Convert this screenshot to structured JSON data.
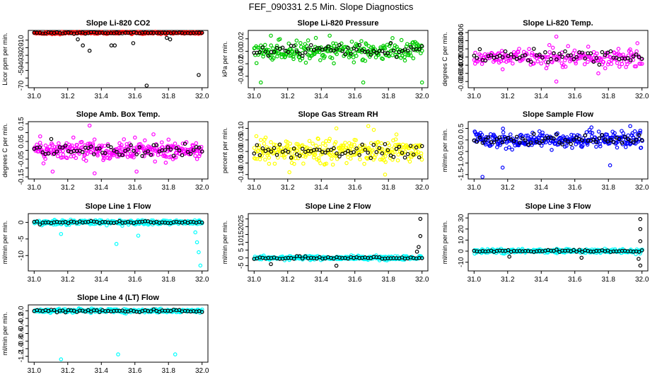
{
  "title": "FEF_090331  2.5 Min. Slope Diagnostics",
  "chart_data": [
    {
      "type": "scatter",
      "title": "Slope Li-820 CO2",
      "ylabel": "Licor ppm per min.",
      "xlim": [
        31.0,
        32.0
      ],
      "ylim": [
        -70,
        0
      ],
      "xticks": [
        31.0,
        31.2,
        31.4,
        31.6,
        31.8,
        32.0
      ],
      "xtick_labels": [
        "31.0",
        "31.2",
        "31.4",
        "31.6",
        "31.8",
        "32.0"
      ],
      "yticks": [
        -70,
        -60,
        -50,
        -40,
        -30,
        -20,
        -10
      ],
      "ytick_labels": [
        "-70",
        "",
        "-50",
        "-40",
        "-30",
        "-20",
        "-10"
      ],
      "band": {
        "center": -0.5,
        "spread": 1.2,
        "n": 200
      },
      "band_color": "#ff0000",
      "black_band": {
        "center": -0.5,
        "spread": 0.6
      },
      "outliers": [
        [
          31.26,
          -9
        ],
        [
          31.29,
          -17
        ],
        [
          31.33,
          -24
        ],
        [
          31.46,
          -17
        ],
        [
          31.48,
          -17
        ],
        [
          31.59,
          -14
        ],
        [
          31.67,
          -70
        ],
        [
          31.79,
          -7
        ],
        [
          31.81,
          -9
        ],
        [
          31.98,
          -56
        ]
      ],
      "outlier_color": "#000000"
    },
    {
      "type": "scatter",
      "title": "Slope Li-820 Pressure",
      "ylabel": "kPa per min.",
      "xlim": [
        31.0,
        32.0
      ],
      "ylim": [
        -0.055,
        0.03
      ],
      "xticks": [
        31.0,
        31.2,
        31.4,
        31.6,
        31.8,
        32.0
      ],
      "xtick_labels": [
        "31.0",
        "31.2",
        "31.4",
        "31.6",
        "31.8",
        "32.0"
      ],
      "yticks": [
        -0.04,
        -0.02,
        0.0,
        0.02
      ],
      "ytick_labels": [
        "-0.04",
        "-0.02",
        "0.00",
        "0.02"
      ],
      "band": {
        "center": 0.0,
        "spread": 0.012,
        "n": 260
      },
      "band_color": "#00cc00",
      "black_band": {
        "center": 0.0,
        "spread": 0.008
      },
      "outliers": [
        [
          31.04,
          -0.05
        ],
        [
          31.65,
          -0.05
        ],
        [
          32.0,
          -0.05
        ],
        [
          31.1,
          0.025
        ],
        [
          31.45,
          0.025
        ]
      ],
      "outlier_color": "#00cc00"
    },
    {
      "type": "scatter",
      "title": "Slope Li-820 Temp.",
      "ylabel": "degrees C per min.",
      "xlim": [
        31.0,
        32.0
      ],
      "ylim": [
        -0.007,
        0.006
      ],
      "xticks": [
        31.0,
        31.2,
        31.4,
        31.6,
        31.8,
        32.0
      ],
      "xtick_labels": [
        "31.0",
        "31.2",
        "31.4",
        "31.6",
        "31.8",
        "32.0"
      ],
      "yticks": [
        -0.006,
        -0.004,
        -0.002,
        0.0,
        0.002,
        0.004,
        0.006
      ],
      "ytick_labels": [
        "-0.006",
        "-0.004",
        "-0.002",
        "0.000",
        "0.002",
        "0.004",
        "0.006"
      ],
      "band": {
        "center": 0.0,
        "spread": 0.0018,
        "n": 220
      },
      "band_color": "#ff00ff",
      "black_band": {
        "center": 0.0,
        "spread": 0.0012
      },
      "outliers": [
        [
          31.49,
          0.005
        ],
        [
          31.49,
          -0.006
        ],
        [
          31.74,
          -0.004
        ],
        [
          31.17,
          -0.003
        ],
        [
          31.86,
          0.002
        ]
      ],
      "outlier_color": "#ff00ff"
    },
    {
      "type": "scatter",
      "title": "Slope Amb. Box Temp.",
      "ylabel": "degrees C per min.",
      "xlim": [
        31.0,
        32.0
      ],
      "ylim": [
        -0.15,
        0.15
      ],
      "xticks": [
        31.0,
        31.2,
        31.4,
        31.6,
        31.8,
        32.0
      ],
      "xtick_labels": [
        "31.0",
        "31.2",
        "31.4",
        "31.6",
        "31.8",
        "32.0"
      ],
      "yticks": [
        -0.15,
        -0.05,
        0.05,
        0.15
      ],
      "ytick_labels": [
        "-0.15",
        "-0.05",
        "0.05",
        "0.15"
      ],
      "yticks_minor": [
        -0.1,
        0.0,
        0.1
      ],
      "band": {
        "center": 0.0,
        "spread": 0.045,
        "n": 300
      },
      "band_color": "#ff00ff",
      "black_band": {
        "center": 0.0,
        "spread": 0.03
      },
      "outliers": [
        [
          31.33,
          0.14
        ],
        [
          31.36,
          -0.13
        ],
        [
          31.11,
          -0.12
        ],
        [
          31.61,
          -0.12
        ]
      ],
      "outlier_color": "#ff00ff"
    },
    {
      "type": "scatter",
      "title": "Slope Gas Stream RH",
      "ylabel": "percent per min.",
      "xlim": [
        31.0,
        32.0
      ],
      "ylim": [
        -0.11,
        0.12
      ],
      "xticks": [
        31.0,
        31.2,
        31.4,
        31.6,
        31.8,
        32.0
      ],
      "xtick_labels": [
        "31.0",
        "31.2",
        "31.4",
        "31.6",
        "31.8",
        "32.0"
      ],
      "yticks": [
        -0.1,
        -0.05,
        0.0,
        0.05,
        0.1
      ],
      "ytick_labels": [
        "-0.10",
        "-0.05",
        "0.00",
        "0.05",
        "0.10"
      ],
      "band": {
        "center": 0.0,
        "spread": 0.04,
        "n": 300
      },
      "band_color": "#ffff00",
      "black_band": {
        "center": 0.0,
        "spread": 0.025
      },
      "outliers": [
        [
          31.68,
          0.11
        ],
        [
          31.49,
          0.1
        ],
        [
          31.78,
          -0.1
        ],
        [
          31.21,
          -0.09
        ]
      ],
      "outlier_color": "#ffff00"
    },
    {
      "type": "scatter",
      "title": "Slope Sample Flow",
      "ylabel": "ml/min per min.",
      "xlim": [
        31.0,
        32.0
      ],
      "ylim": [
        -1.6,
        0.7
      ],
      "xticks": [
        31.0,
        31.2,
        31.4,
        31.6,
        31.8,
        32.0
      ],
      "xtick_labels": [
        "31.0",
        "31.2",
        "31.4",
        "31.6",
        "31.8",
        "32.0"
      ],
      "yticks": [
        -1.5,
        -1.0,
        -0.5,
        0.0,
        0.5
      ],
      "ytick_labels": [
        "-1.5",
        "-1.0",
        "-0.5",
        "0.0",
        "0.5"
      ],
      "band": {
        "center": 0.0,
        "spread": 0.28,
        "n": 300
      },
      "band_color": "#0000ff",
      "black_band": {
        "center": 0.0,
        "spread": 0.2
      },
      "outliers": [
        [
          31.05,
          -1.6
        ],
        [
          31.93,
          0.6
        ],
        [
          31.17,
          -1.2
        ],
        [
          31.81,
          -1.1
        ],
        [
          31.99,
          0.4
        ]
      ],
      "outlier_color": "#0000ff"
    },
    {
      "type": "scatter",
      "title": "Slope Line 1 Flow",
      "ylabel": "ml/min per min.",
      "xlim": [
        31.0,
        32.0
      ],
      "ylim": [
        -14,
        2
      ],
      "xticks": [
        31.0,
        31.2,
        31.4,
        31.6,
        31.8,
        32.0
      ],
      "xtick_labels": [
        "31.0",
        "31.2",
        "31.4",
        "31.6",
        "31.8",
        "32.0"
      ],
      "yticks": [
        -10,
        -5,
        0
      ],
      "ytick_labels": [
        "-10",
        "-5",
        "0"
      ],
      "band": {
        "center": 0.0,
        "spread": 0.6,
        "n": 280
      },
      "band_color": "#00ffff",
      "black_band": {
        "center": 0.0,
        "spread": 0.3
      },
      "outliers": [
        [
          31.16,
          -3.5
        ],
        [
          31.49,
          -6.5
        ],
        [
          31.62,
          -4
        ],
        [
          31.97,
          -6
        ],
        [
          31.98,
          -9
        ],
        [
          31.99,
          -13
        ],
        [
          31.96,
          -3
        ]
      ],
      "outlier_color": "#00ffff"
    },
    {
      "type": "scatter",
      "title": "Slope Line 2 Flow",
      "ylabel": "ml/min per min.",
      "xlim": [
        31.0,
        32.0
      ],
      "ylim": [
        -7,
        27
      ],
      "xticks": [
        31.0,
        31.2,
        31.4,
        31.6,
        31.8,
        32.0
      ],
      "xtick_labels": [
        "31.0",
        "31.2",
        "31.4",
        "31.6",
        "31.8",
        "32.0"
      ],
      "yticks": [
        -5,
        0,
        5,
        10,
        15,
        20,
        25
      ],
      "ytick_labels": [
        "-5",
        "0",
        "5",
        "10",
        "15",
        "20",
        "25"
      ],
      "band": {
        "center": 0.0,
        "spread": 1.0,
        "n": 280
      },
      "band_color": "#00ffff",
      "black_band": {
        "center": 0.0,
        "spread": 0.6
      },
      "outliers": [
        [
          31.99,
          25
        ],
        [
          31.99,
          14
        ],
        [
          31.98,
          7
        ],
        [
          31.97,
          4
        ],
        [
          31.1,
          -4
        ],
        [
          31.49,
          -5
        ]
      ],
      "outlier_color": "#000000"
    },
    {
      "type": "scatter",
      "title": "Slope Line 3 Flow",
      "ylabel": "ml/min per min.",
      "xlim": [
        31.0,
        32.0
      ],
      "ylim": [
        -16,
        32
      ],
      "xticks": [
        31.0,
        31.2,
        31.4,
        31.6,
        31.8,
        32.0
      ],
      "xtick_labels": [
        "31.0",
        "31.2",
        "31.4",
        "31.6",
        "31.8",
        "32.0"
      ],
      "yticks": [
        -10,
        0,
        10,
        20,
        30
      ],
      "ytick_labels": [
        "-10",
        "0",
        "10",
        "20",
        "30"
      ],
      "band": {
        "center": 0.0,
        "spread": 1.5,
        "n": 280
      },
      "band_color": "#00ffff",
      "black_band": {
        "center": 0.0,
        "spread": 0.8
      },
      "outliers": [
        [
          31.99,
          29
        ],
        [
          31.99,
          20
        ],
        [
          31.99,
          9
        ],
        [
          31.98,
          -7
        ],
        [
          31.99,
          -13
        ],
        [
          31.21,
          -5
        ],
        [
          31.64,
          -6
        ]
      ],
      "outlier_color": "#000000"
    },
    {
      "type": "scatter",
      "title": "Slope Line 4 (LT) Flow",
      "ylabel": "ml/min per min.",
      "xlim": [
        31.0,
        32.0
      ],
      "ylim": [
        -1.3,
        0.1
      ],
      "xticks": [
        31.0,
        31.2,
        31.4,
        31.6,
        31.8,
        32.0
      ],
      "xtick_labels": [
        "31.0",
        "31.2",
        "31.4",
        "31.6",
        "31.8",
        "32.0"
      ],
      "yticks": [
        -1.2,
        -1.0,
        -0.8,
        -0.6,
        -0.4,
        -0.2,
        0.0
      ],
      "ytick_labels": [
        "-1.2",
        "-1.0",
        "-0.8",
        "-0.6",
        "-0.4",
        "-0.2",
        "0.0"
      ],
      "band": {
        "center": 0.0,
        "spread": 0.04,
        "n": 280
      },
      "band_color": "#00ffff",
      "black_band": {
        "center": 0.0,
        "spread": 0.03
      },
      "outliers": [
        [
          31.16,
          -1.28
        ],
        [
          31.5,
          -1.15
        ],
        [
          31.84,
          -1.15
        ]
      ],
      "outlier_color": "#00ffff"
    }
  ]
}
